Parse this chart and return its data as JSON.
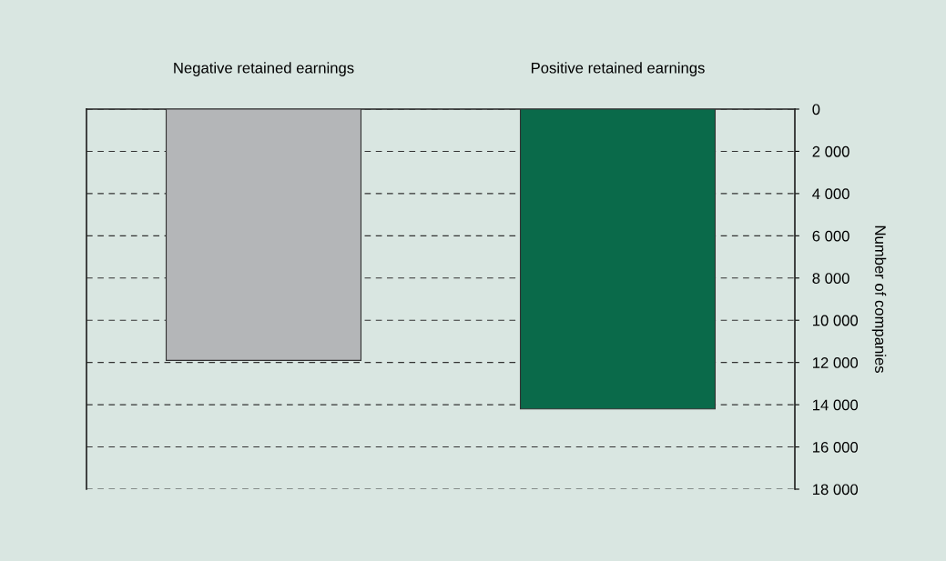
{
  "chart_data": {
    "type": "bar",
    "categories": [
      "Negative retained earnings",
      "Positive retained earnings"
    ],
    "values": [
      11900,
      14200
    ],
    "colors": [
      "#b4b6b8",
      "#0a6a4a"
    ],
    "ylabel": "Number of companies",
    "ylim": [
      18000,
      0
    ],
    "yticks": [
      0,
      {
        "value": 2000,
        "label": "2 000"
      },
      {
        "value": 4000,
        "label": "4 000"
      },
      {
        "value": 6000,
        "label": "6 000"
      },
      {
        "value": 8000,
        "label": "8 000"
      },
      {
        "value": 10000,
        "label": "10 000"
      },
      {
        "value": 12000,
        "label": "12 000"
      },
      {
        "value": 14000,
        "label": "14 000"
      },
      {
        "value": 16000,
        "label": "16 000"
      },
      {
        "value": 18000,
        "label": "18 000"
      }
    ],
    "grid": "y"
  }
}
